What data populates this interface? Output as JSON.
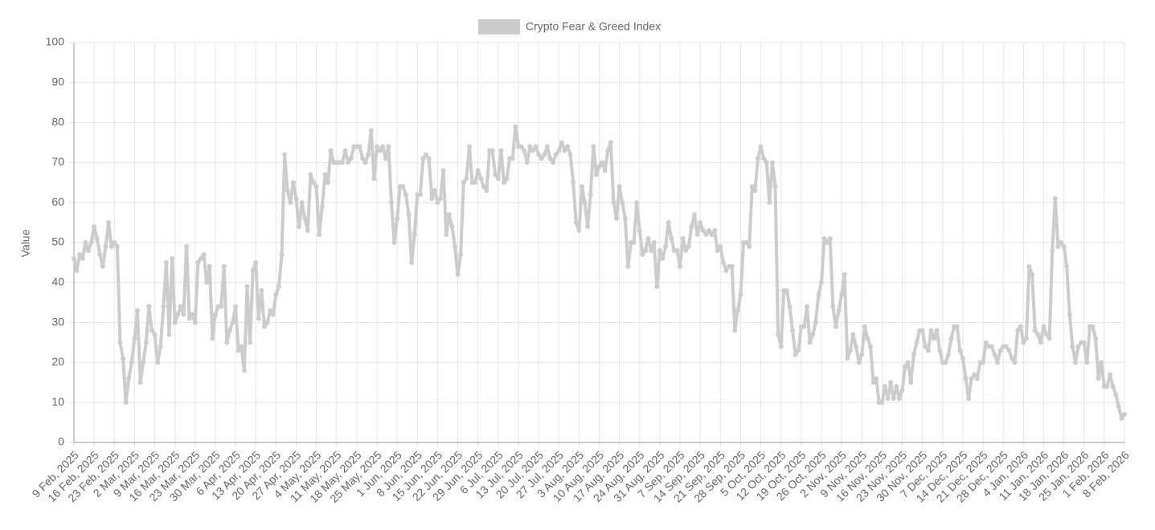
{
  "chart_data": {
    "type": "line",
    "legend": "top",
    "grid": true,
    "y_label": "Value",
    "ylim": [
      0,
      100
    ],
    "yticks": [
      0,
      10,
      20,
      30,
      40,
      50,
      60,
      70,
      80,
      90,
      100
    ],
    "categories": [
      "9 Feb, 2025",
      null,
      null,
      null,
      null,
      null,
      null,
      "16 Feb, 2025",
      null,
      null,
      null,
      null,
      null,
      null,
      "23 Feb, 2025",
      null,
      null,
      null,
      null,
      null,
      null,
      "2 Mar, 2025",
      null,
      null,
      null,
      null,
      null,
      null,
      "9 Mar, 2025",
      null,
      null,
      null,
      null,
      null,
      null,
      "16 Mar, 2025",
      null,
      null,
      null,
      null,
      null,
      null,
      "23 Mar, 2025",
      null,
      null,
      null,
      null,
      null,
      null,
      "30 Mar, 2025",
      null,
      null,
      null,
      null,
      null,
      null,
      "6 Apr, 2025",
      null,
      null,
      null,
      null,
      null,
      null,
      "13 Apr, 2025",
      null,
      null,
      null,
      null,
      null,
      null,
      "20 Apr, 2025",
      null,
      null,
      null,
      null,
      null,
      null,
      "27 Apr, 2025",
      null,
      null,
      null,
      null,
      null,
      null,
      "4 May, 2025",
      null,
      null,
      null,
      null,
      null,
      null,
      "11 May, 2025",
      null,
      null,
      null,
      null,
      null,
      null,
      "18 May, 2025",
      null,
      null,
      null,
      null,
      null,
      null,
      "25 May, 2025",
      null,
      null,
      null,
      null,
      null,
      null,
      "1 Jun, 2025",
      null,
      null,
      null,
      null,
      null,
      null,
      "8 Jun, 2025",
      null,
      null,
      null,
      null,
      null,
      null,
      "15 Jun, 2025",
      null,
      null,
      null,
      null,
      null,
      null,
      "22 Jun, 2025",
      null,
      null,
      null,
      null,
      null,
      null,
      "29 Jun, 2025",
      null,
      null,
      null,
      null,
      null,
      null,
      "6 Jul, 2025",
      null,
      null,
      null,
      null,
      null,
      null,
      "13 Jul, 2025",
      null,
      null,
      null,
      null,
      null,
      null,
      "20 Jul, 2025",
      null,
      null,
      null,
      null,
      null,
      null,
      "27 Jul, 2025",
      null,
      null,
      null,
      null,
      null,
      null,
      "3 Aug, 2025",
      null,
      null,
      null,
      null,
      null,
      null,
      "10 Aug, 2025",
      null,
      null,
      null,
      null,
      null,
      null,
      "17 Aug, 2025",
      null,
      null,
      null,
      null,
      null,
      null,
      "24 Aug, 2025",
      null,
      null,
      null,
      null,
      null,
      null,
      "31 Aug, 2025",
      null,
      null,
      null,
      null,
      null,
      null,
      "7 Sep, 2025",
      null,
      null,
      null,
      null,
      null,
      null,
      "14 Sep, 2025",
      null,
      null,
      null,
      null,
      null,
      null,
      "21 Sep, 2025",
      null,
      null,
      null,
      null,
      null,
      null,
      "28 Sep, 2025",
      null,
      null,
      null,
      null,
      null,
      null,
      "5 Oct, 2025",
      null,
      null,
      null,
      null,
      null,
      null,
      "12 Oct, 2025",
      null,
      null,
      null,
      null,
      null,
      null,
      "19 Oct, 2025",
      null,
      null,
      null,
      null,
      null,
      null,
      "26 Oct, 2025",
      null,
      null,
      null,
      null,
      null,
      null,
      "2 Nov, 2025",
      null,
      null,
      null,
      null,
      null,
      null,
      "9 Nov, 2025",
      null,
      null,
      null,
      null,
      null,
      null,
      "16 Nov, 2025",
      null,
      null,
      null,
      null,
      null,
      null,
      "23 Nov, 2025",
      null,
      null,
      null,
      null,
      null,
      null,
      "30 Nov, 2025",
      null,
      null,
      null,
      null,
      null,
      null,
      "7 Dec, 2025",
      null,
      null,
      null,
      null,
      null,
      null,
      "14 Dec, 2025",
      null,
      null,
      null,
      null,
      null,
      null,
      "21 Dec, 2025",
      null,
      null,
      null,
      null,
      null,
      null,
      "28 Dec, 2025",
      null,
      null,
      null,
      null,
      null,
      null,
      "4 Jan, 2026",
      null,
      null,
      null,
      null,
      null,
      null,
      "11 Jan, 2026",
      null,
      null,
      null,
      null,
      null,
      null,
      "18 Jan, 2026",
      null,
      null,
      null,
      null,
      null,
      null,
      "25 Jan, 2026",
      null,
      null,
      null,
      null,
      null,
      null,
      "1 Feb, 2026",
      null,
      null,
      null,
      null,
      null,
      null,
      "8 Feb, 2026"
    ],
    "series": [
      {
        "name": "Crypto Fear & Greed Index",
        "color": "#cccccc",
        "values": [
          46,
          43,
          47,
          46,
          50,
          48,
          50,
          54,
          51,
          47,
          44,
          49,
          55,
          49,
          50,
          49,
          25,
          21,
          10,
          16,
          20,
          26,
          33,
          15,
          20,
          25,
          34,
          28,
          27,
          20,
          24,
          34,
          45,
          27,
          46,
          30,
          32,
          34,
          32,
          49,
          31,
          32,
          30,
          45,
          46,
          47,
          40,
          44,
          26,
          32,
          34,
          34,
          44,
          25,
          28,
          30,
          34,
          23,
          24,
          18,
          39,
          25,
          43,
          45,
          31,
          38,
          29,
          30,
          33,
          32,
          37,
          39,
          47,
          72,
          63,
          60,
          65,
          61,
          54,
          60,
          56,
          53,
          67,
          65,
          64,
          52,
          59,
          67,
          65,
          73,
          70,
          70,
          70,
          70,
          73,
          70,
          71,
          74,
          74,
          74,
          71,
          70,
          72,
          78,
          66,
          74,
          73,
          74,
          71,
          74,
          60,
          50,
          56,
          64,
          64,
          62,
          57,
          45,
          52,
          62,
          62,
          71,
          72,
          71,
          61,
          63,
          60,
          61,
          68,
          52,
          57,
          54,
          49,
          42,
          47,
          65,
          66,
          74,
          65,
          65,
          68,
          66,
          64,
          63,
          73,
          73,
          67,
          66,
          73,
          65,
          66,
          71,
          71,
          79,
          74,
          74,
          73,
          70,
          74,
          73,
          74,
          72,
          71,
          72,
          74,
          71,
          70,
          72,
          73,
          75,
          73,
          74,
          72,
          65,
          55,
          53,
          64,
          60,
          54,
          62,
          74,
          67,
          69,
          70,
          68,
          73,
          75,
          60,
          56,
          64,
          60,
          56,
          44,
          50,
          50,
          60,
          53,
          47,
          48,
          51,
          48,
          50,
          39,
          48,
          46,
          49,
          55,
          51,
          48,
          48,
          44,
          51,
          48,
          49,
          54,
          57,
          52,
          55,
          53,
          52,
          53,
          52,
          53,
          48,
          49,
          45,
          43,
          44,
          44,
          28,
          33,
          37,
          50,
          50,
          49,
          64,
          63,
          71,
          74,
          71,
          70,
          60,
          70,
          64,
          27,
          24,
          38,
          38,
          34,
          28,
          22,
          23,
          29,
          29,
          34,
          25,
          27,
          30,
          37,
          40,
          51,
          50,
          51,
          34,
          29,
          33,
          37,
          42,
          21,
          23,
          27,
          24,
          20,
          22,
          29,
          26,
          24,
          15,
          16,
          10,
          10,
          14,
          11,
          15,
          11,
          14,
          11,
          13,
          19,
          20,
          15,
          22,
          25,
          28,
          28,
          24,
          23,
          28,
          26,
          28,
          23,
          20,
          20,
          22,
          26,
          29,
          29,
          23,
          21,
          16,
          11,
          16,
          17,
          16,
          20,
          20,
          25,
          24,
          24,
          22,
          20,
          23,
          24,
          24,
          23,
          21,
          20,
          28,
          29,
          25,
          26,
          44,
          42,
          28,
          27,
          25,
          29,
          27,
          26,
          48,
          61,
          49,
          50,
          49,
          44,
          32,
          24,
          20,
          24,
          25,
          25,
          20,
          29,
          29,
          26,
          16,
          20,
          14,
          14,
          17,
          14,
          12,
          9,
          6,
          7
        ]
      }
    ]
  }
}
